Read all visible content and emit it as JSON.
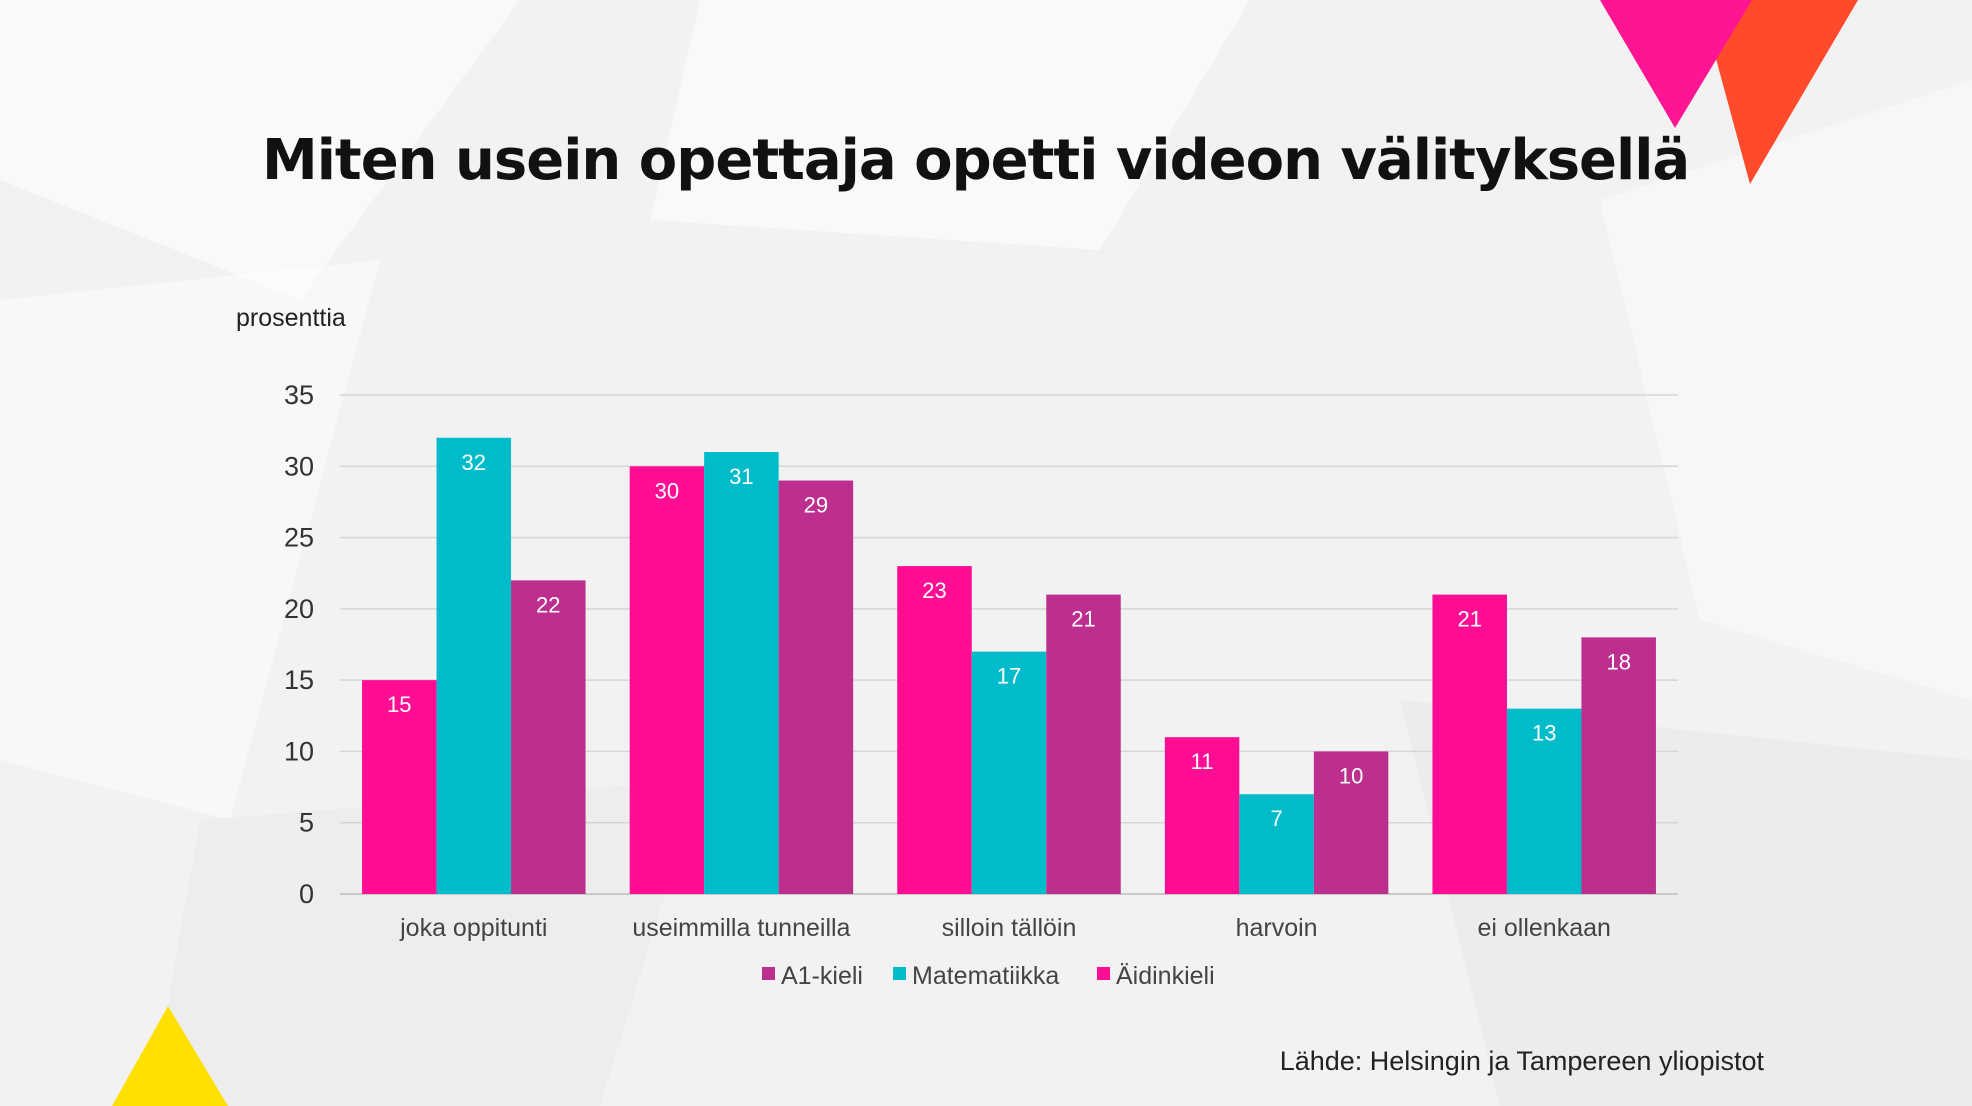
{
  "colors": {
    "aidinkieli": "#ff0d93",
    "matematiikka": "#00bccb",
    "a1kieli": "#bd2f8e",
    "accent_pink": "#ff1493",
    "accent_orange": "#ff4a2b",
    "accent_yellow": "#ffe000"
  },
  "source": "Lähde: Helsingin ja Tampereen yliopistot",
  "chart_data": {
    "type": "bar",
    "title": "Miten usein opettaja opetti videon välityksellä",
    "ylabel": "prosenttia",
    "xlabel": "",
    "ylim": [
      0,
      35
    ],
    "yticks": [
      0,
      5,
      10,
      15,
      20,
      25,
      30,
      35
    ],
    "grid": true,
    "legend_position": "bottom",
    "categories": [
      "joka oppitunti",
      "useimmilla tunneilla",
      "silloin tällöin",
      "harvoin",
      "ei ollenkaan"
    ],
    "series": [
      {
        "name": "Äidinkieli",
        "color": "#ff0d93",
        "values": [
          15,
          30,
          23,
          11,
          21
        ]
      },
      {
        "name": "Matematiikka",
        "color": "#00bccb",
        "values": [
          32,
          31,
          17,
          7,
          13
        ]
      },
      {
        "name": "A1-kieli",
        "color": "#bd2f8e",
        "values": [
          22,
          29,
          21,
          10,
          18
        ]
      }
    ],
    "legend_order": [
      "A1-kieli",
      "Matematiikka",
      "Äidinkieli"
    ]
  }
}
